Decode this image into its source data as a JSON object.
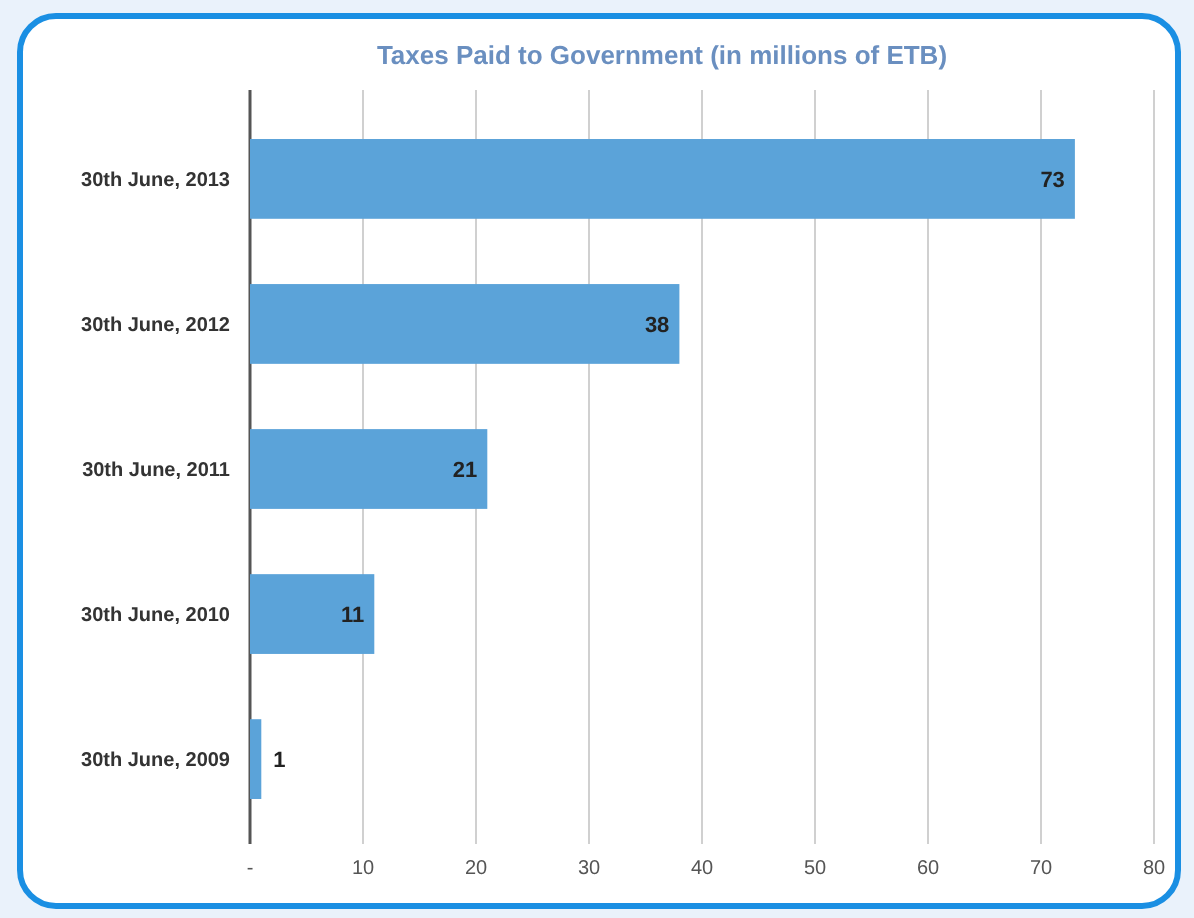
{
  "chart_data": {
    "type": "bar",
    "orientation": "horizontal",
    "title": "Taxes Paid to Government (in millions of ETB)",
    "categories": [
      "30th June, 2013",
      "30th June, 2012",
      "30th June, 2011",
      "30th June, 2010",
      "30th June, 2009"
    ],
    "values": [
      73,
      38,
      21,
      11,
      1
    ],
    "color": "#5ba3d9",
    "xlim": [
      0,
      80
    ],
    "xticks": [
      {
        "value": 0,
        "label": "-"
      },
      10,
      20,
      30,
      40,
      50,
      60,
      70,
      80
    ],
    "grid": "x",
    "data_labels": true
  }
}
